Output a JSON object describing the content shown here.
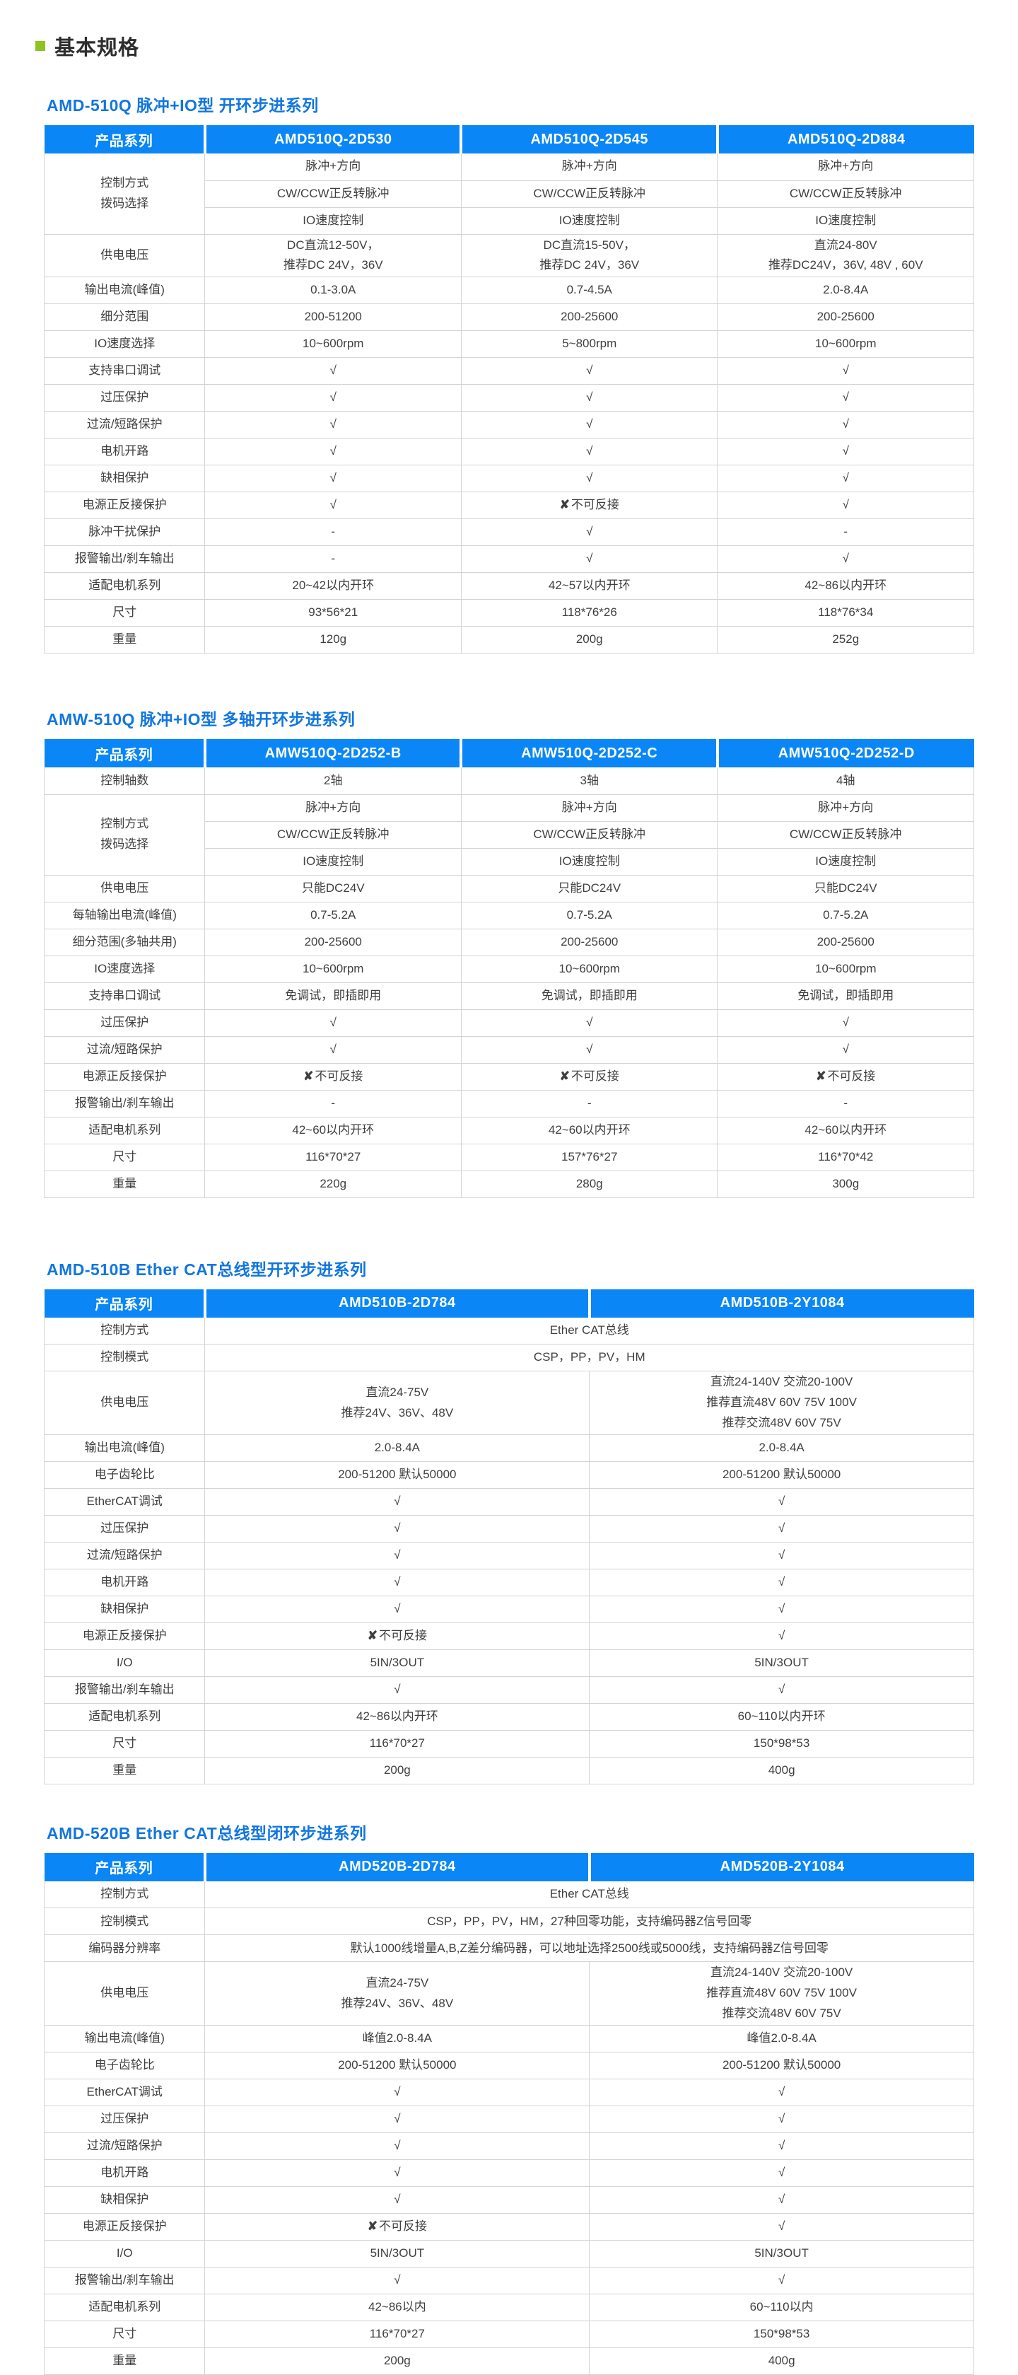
{
  "page": {
    "heading": "基本规格",
    "colors": {
      "header_blue": "#0a86f6",
      "title_blue": "#1276e0",
      "accent_green": "#8fc31f",
      "check_mark": "√",
      "cross_mark": "✘"
    }
  },
  "tables": [
    {
      "title": "AMD-510Q 脉冲+IO型 开环步进系列",
      "columns": [
        "产品系列",
        "AMD510Q-2D530",
        "AMD510Q-2D545",
        "AMD510Q-2D884"
      ],
      "rows": [
        {
          "label": "控制方式\n拨码选择",
          "rowspan": 3,
          "cells": [
            "脉冲+方向",
            "脉冲+方向",
            "脉冲+方向"
          ]
        },
        {
          "cells": [
            "CW/CCW正反转脉冲",
            "CW/CCW正反转脉冲",
            "CW/CCW正反转脉冲"
          ]
        },
        {
          "cells": [
            "IO速度控制",
            "IO速度控制",
            "IO速度控制"
          ]
        },
        {
          "label": "供电电压",
          "cells": [
            [
              "DC直流12-50V，",
              "推荐DC 24V，36V"
            ],
            [
              "DC直流15-50V，",
              "推荐DC 24V，36V"
            ],
            [
              "直流24-80V",
              "推荐DC24V，36V, 48V , 60V"
            ]
          ]
        },
        {
          "label": "输出电流(峰值)",
          "cells": [
            "0.1-3.0A",
            "0.7-4.5A",
            "2.0-8.4A"
          ]
        },
        {
          "label": "细分范围",
          "cells": [
            "200-51200",
            "200-25600",
            "200-25600"
          ]
        },
        {
          "label": "IO速度选择",
          "cells": [
            "10~600rpm",
            "5~800rpm",
            "10~600rpm"
          ]
        },
        {
          "label": "支持串口调试",
          "cells": [
            "√",
            "√",
            "√"
          ]
        },
        {
          "label": "过压保护",
          "cells": [
            "√",
            "√",
            "√"
          ]
        },
        {
          "label": "过流/短路保护",
          "cells": [
            "√",
            "√",
            "√"
          ]
        },
        {
          "label": "电机开路",
          "cells": [
            "√",
            "√",
            "√"
          ]
        },
        {
          "label": "缺相保护",
          "cells": [
            "√",
            "√",
            "√"
          ]
        },
        {
          "label": "电源正反接保护",
          "cells": [
            "√",
            "✘不可反接",
            "√"
          ]
        },
        {
          "label": "脉冲干扰保护",
          "cells": [
            "-",
            "√",
            "-"
          ]
        },
        {
          "label": "报警输出/刹车输出",
          "cells": [
            "-",
            "√",
            "√"
          ]
        },
        {
          "label": "适配电机系列",
          "cells": [
            "20~42以内开环",
            "42~57以内开环",
            "42~86以内开环"
          ]
        },
        {
          "label": "尺寸",
          "cells": [
            "93*56*21",
            "118*76*26",
            "118*76*34"
          ]
        },
        {
          "label": "重量",
          "cells": [
            "120g",
            "200g",
            "252g"
          ]
        }
      ]
    },
    {
      "title": "AMW-510Q 脉冲+IO型 多轴开环步进系列",
      "columns": [
        "产品系列",
        "AMW510Q-2D252-B",
        "AMW510Q-2D252-C",
        "AMW510Q-2D252-D"
      ],
      "rows": [
        {
          "label": "控制轴数",
          "cells": [
            "2轴",
            "3轴",
            "4轴"
          ]
        },
        {
          "label": "控制方式\n拨码选择",
          "rowspan": 3,
          "cells": [
            "脉冲+方向",
            "脉冲+方向",
            "脉冲+方向"
          ]
        },
        {
          "cells": [
            "CW/CCW正反转脉冲",
            "CW/CCW正反转脉冲",
            "CW/CCW正反转脉冲"
          ]
        },
        {
          "cells": [
            "IO速度控制",
            "IO速度控制",
            "IO速度控制"
          ]
        },
        {
          "label": "供电电压",
          "cells": [
            "只能DC24V",
            "只能DC24V",
            "只能DC24V"
          ]
        },
        {
          "label": "每轴输出电流(峰值)",
          "cells": [
            "0.7-5.2A",
            "0.7-5.2A",
            "0.7-5.2A"
          ]
        },
        {
          "label": "细分范围(多轴共用)",
          "cells": [
            "200-25600",
            "200-25600",
            "200-25600"
          ]
        },
        {
          "label": "IO速度选择",
          "cells": [
            "10~600rpm",
            "10~600rpm",
            "10~600rpm"
          ]
        },
        {
          "label": "支持串口调试",
          "cells": [
            "免调试，即插即用",
            "免调试，即插即用",
            "免调试，即插即用"
          ]
        },
        {
          "label": "过压保护",
          "cells": [
            "√",
            "√",
            "√"
          ]
        },
        {
          "label": "过流/短路保护",
          "cells": [
            "√",
            "√",
            "√"
          ]
        },
        {
          "label": "电源正反接保护",
          "cells": [
            "✘不可反接",
            "✘不可反接",
            "✘不可反接"
          ]
        },
        {
          "label": "报警输出/刹车输出",
          "cells": [
            "-",
            "-",
            "-"
          ]
        },
        {
          "label": "适配电机系列",
          "cells": [
            "42~60以内开环",
            "42~60以内开环",
            "42~60以内开环"
          ]
        },
        {
          "label": "尺寸",
          "cells": [
            "116*70*27",
            "157*76*27",
            "116*70*42"
          ]
        },
        {
          "label": "重量",
          "cells": [
            "220g",
            "280g",
            "300g"
          ]
        }
      ]
    },
    {
      "title": "AMD-510B Ether CAT总线型开环步进系列",
      "columns": [
        "产品系列",
        "AMD510B-2D784",
        "AMD510B-2Y1084"
      ],
      "rows": [
        {
          "label": "控制方式",
          "span": "Ether CAT总线"
        },
        {
          "label": "控制模式",
          "span": "CSP，PP，PV，HM"
        },
        {
          "label": "供电电压",
          "cells": [
            [
              "直流24-75V",
              "推荐24V、36V、48V"
            ],
            [
              "直流24-140V 交流20-100V",
              "推荐直流48V 60V 75V 100V",
              "推荐交流48V 60V 75V"
            ]
          ]
        },
        {
          "label": "输出电流(峰值)",
          "cells": [
            "2.0-8.4A",
            "2.0-8.4A"
          ]
        },
        {
          "label": "电子齿轮比",
          "cells": [
            "200-51200 默认50000",
            "200-51200 默认50000"
          ]
        },
        {
          "label": "EtherCAT调试",
          "cells": [
            "√",
            "√"
          ]
        },
        {
          "label": "过压保护",
          "cells": [
            "√",
            "√"
          ]
        },
        {
          "label": "过流/短路保护",
          "cells": [
            "√",
            "√"
          ]
        },
        {
          "label": "电机开路",
          "cells": [
            "√",
            "√"
          ]
        },
        {
          "label": "缺相保护",
          "cells": [
            "√",
            "√"
          ]
        },
        {
          "label": "电源正反接保护",
          "cells": [
            "✘不可反接",
            "√"
          ]
        },
        {
          "label": "I/O",
          "cells": [
            "5IN/3OUT",
            "5IN/3OUT"
          ]
        },
        {
          "label": "报警输出/刹车输出",
          "cells": [
            "√",
            "√"
          ]
        },
        {
          "label": "适配电机系列",
          "cells": [
            "42~86以内开环",
            "60~110以内开环"
          ]
        },
        {
          "label": "尺寸",
          "cells": [
            "116*70*27",
            "150*98*53"
          ]
        },
        {
          "label": "重量",
          "cells": [
            "200g",
            "400g"
          ]
        }
      ]
    },
    {
      "title": "AMD-520B Ether CAT总线型闭环步进系列",
      "columns": [
        "产品系列",
        "AMD520B-2D784",
        "AMD520B-2Y1084"
      ],
      "rows": [
        {
          "label": "控制方式",
          "span": "Ether CAT总线"
        },
        {
          "label": "控制模式",
          "span": "CSP，PP，PV，HM，27种回零功能，支持编码器Z信号回零"
        },
        {
          "label": "编码器分辨率",
          "span": "默认1000线增量A,B,Z差分编码器，可以地址选择2500线或5000线，支持编码器Z信号回零"
        },
        {
          "label": "供电电压",
          "cells": [
            [
              "直流24-75V",
              "推荐24V、36V、48V"
            ],
            [
              "直流24-140V 交流20-100V",
              "推荐直流48V 60V 75V 100V",
              "推荐交流48V 60V 75V"
            ]
          ]
        },
        {
          "label": "输出电流(峰值)",
          "cells": [
            "峰值2.0-8.4A",
            "峰值2.0-8.4A"
          ]
        },
        {
          "label": "电子齿轮比",
          "cells": [
            "200-51200 默认50000",
            "200-51200 默认50000"
          ]
        },
        {
          "label": "EtherCAT调试",
          "cells": [
            "√",
            "√"
          ]
        },
        {
          "label": "过压保护",
          "cells": [
            "√",
            "√"
          ]
        },
        {
          "label": "过流/短路保护",
          "cells": [
            "√",
            "√"
          ]
        },
        {
          "label": "电机开路",
          "cells": [
            "√",
            "√"
          ]
        },
        {
          "label": "缺相保护",
          "cells": [
            "√",
            "√"
          ]
        },
        {
          "label": "电源正反接保护",
          "cells": [
            "✘不可反接",
            "√"
          ]
        },
        {
          "label": "I/O",
          "cells": [
            "5IN/3OUT",
            "5IN/3OUT"
          ]
        },
        {
          "label": "报警输出/刹车输出",
          "cells": [
            "√",
            "√"
          ]
        },
        {
          "label": "适配电机系列",
          "cells": [
            "42~86以内",
            "60~110以内"
          ]
        },
        {
          "label": "尺寸",
          "cells": [
            "116*70*27",
            "150*98*53"
          ]
        },
        {
          "label": "重量",
          "cells": [
            "200g",
            "400g"
          ]
        }
      ]
    }
  ]
}
